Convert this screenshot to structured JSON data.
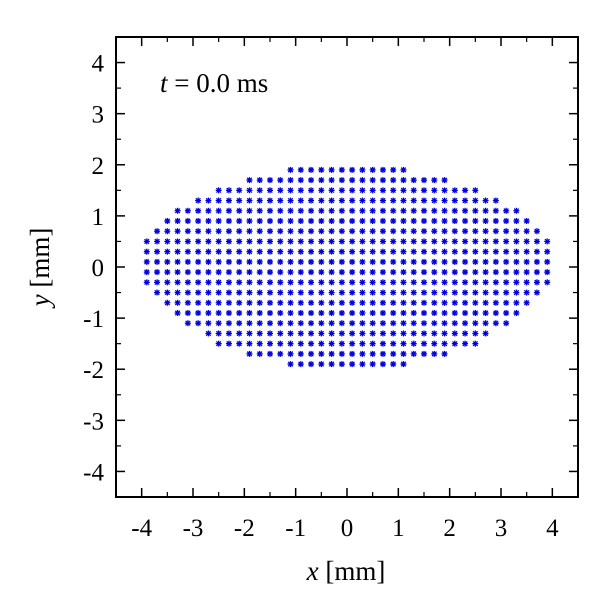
{
  "chart_data": {
    "type": "scatter",
    "annotation": {
      "var": "t",
      "eq": " =  ",
      "value": "0.0 ms"
    },
    "xlabel": {
      "var": "x",
      "unit": " [mm]"
    },
    "ylabel": {
      "var": "y",
      "unit": " [mm]"
    },
    "xlim": [
      -4.5,
      4.5
    ],
    "ylim": [
      -4.5,
      4.5
    ],
    "xticks": [
      "-4",
      "-3",
      "-2",
      "-1",
      "0",
      "1",
      "2",
      "3",
      "4"
    ],
    "yticks": [
      "-4",
      "-3",
      "-2",
      "-1",
      "0",
      "1",
      "2",
      "3",
      "4"
    ],
    "marker": "asterisk",
    "color": "#0000dd",
    "grid": false,
    "series": [
      {
        "rows": [
          {
            "y": 1.9,
            "x": [
              -1.1,
              1.1
            ]
          },
          {
            "y": 1.7,
            "x": [
              -1.9,
              1.9
            ]
          },
          {
            "y": 1.5,
            "x": [
              -2.5,
              2.5
            ]
          },
          {
            "y": 1.3,
            "x": [
              -2.9,
              2.9
            ]
          },
          {
            "y": 1.1,
            "x": [
              -3.3,
              3.3
            ]
          },
          {
            "y": 0.9,
            "x": [
              -3.5,
              3.5
            ]
          },
          {
            "y": 0.7,
            "x": [
              -3.7,
              3.7
            ]
          },
          {
            "y": 0.5,
            "x": [
              -3.9,
              3.9
            ]
          },
          {
            "y": 0.3,
            "x": [
              -3.9,
              3.9
            ]
          },
          {
            "y": 0.1,
            "x": [
              -3.9,
              3.9
            ]
          },
          {
            "y": -0.1,
            "x": [
              -3.9,
              3.9
            ]
          },
          {
            "y": -0.3,
            "x": [
              -3.9,
              3.9
            ]
          },
          {
            "y": -0.5,
            "x": [
              -3.7,
              3.7
            ]
          },
          {
            "y": -0.7,
            "x": [
              -3.5,
              3.5
            ]
          },
          {
            "y": -0.9,
            "x": [
              -3.3,
              3.3
            ]
          },
          {
            "y": -1.1,
            "x": [
              -3.1,
              3.1
            ]
          },
          {
            "y": -1.3,
            "x": [
              -2.7,
              2.7
            ]
          },
          {
            "y": -1.5,
            "x": [
              -2.5,
              2.5
            ]
          },
          {
            "y": -1.7,
            "x": [
              -1.9,
              1.9
            ]
          },
          {
            "y": -1.9,
            "x": [
              -1.1,
              1.1
            ]
          }
        ],
        "step": 0.2
      }
    ]
  }
}
